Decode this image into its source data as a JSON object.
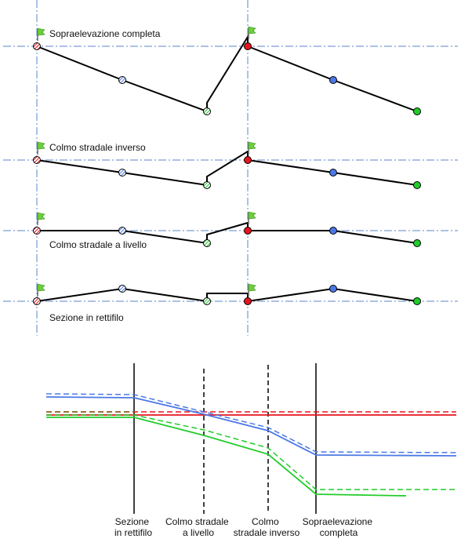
{
  "profiles": [
    {
      "label": "Sopraelevazione completa"
    },
    {
      "label": "Colmo stradale inverso"
    },
    {
      "label": "Colmo stradale a livello"
    },
    {
      "label": "Sezione in rettifilo"
    }
  ],
  "transition_axis_labels": [
    {
      "line1": "Sezione",
      "line2": "in rettifilo"
    },
    {
      "line1": "Colmo stradale",
      "line2": "a livello"
    },
    {
      "line1": "Colmo",
      "line2": "stradale inverso"
    },
    {
      "line1": "Sopraelevazione",
      "line2": "completa"
    }
  ],
  "colors": {
    "red": "#e8141e",
    "blue": "#4a78e6",
    "green": "#22cc2a",
    "olive": "#7a6a1e",
    "axis": "#5b86c9",
    "flag": "#6ccf3a"
  }
}
